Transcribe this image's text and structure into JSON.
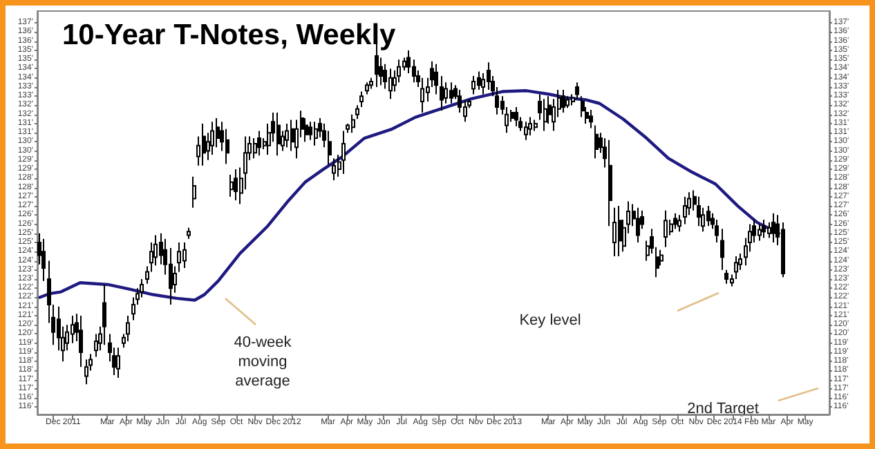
{
  "chart_data": {
    "type": "candlestick",
    "title": "10-Year T-Notes, Weekly",
    "annotations": [
      "40-week moving average",
      "Key level",
      "2nd Target"
    ],
    "color": "#000000",
    "x": [
      "2010-11-09",
      "2010-11-16",
      "2010-11-24",
      "2010-12-02",
      "2010-12-10",
      "2010-12-17",
      "2010-12-25",
      "2011-01-02",
      "2011-01-10",
      "2011-01-17",
      "2011-01-25",
      "2011-02-02",
      "2011-02-10",
      "2011-02-17",
      "2011-02-25",
      "2011-03-05",
      "2011-03-13",
      "2011-03-20",
      "2011-03-28",
      "2011-04-05",
      "2011-04-13",
      "2011-04-20",
      "2011-04-28",
      "2011-05-06",
      "2011-05-14",
      "2011-05-21",
      "2011-05-29",
      "2011-06-06",
      "2011-06-14",
      "2011-06-21",
      "2011-06-29",
      "2011-07-07",
      "2011-07-15",
      "2011-07-22",
      "2011-07-30",
      "2011-08-07",
      "2011-08-15",
      "2011-08-22",
      "2011-08-30",
      "2011-09-07",
      "2011-09-15",
      "2011-09-22",
      "2011-09-30",
      "2011-10-08",
      "2011-10-16",
      "2011-10-23",
      "2011-10-31",
      "2011-11-08",
      "2011-11-16",
      "2011-11-23",
      "2011-12-01",
      "2011-12-09",
      "2011-12-17",
      "2011-12-24",
      "2012-01-01",
      "2012-01-09",
      "2012-01-17",
      "2012-01-24",
      "2012-02-01",
      "2012-02-09",
      "2012-02-17",
      "2012-02-24",
      "2012-03-03",
      "2012-03-11",
      "2012-03-19",
      "2012-03-26",
      "2012-04-03",
      "2012-04-11",
      "2012-04-19",
      "2012-04-26",
      "2012-05-04",
      "2012-05-12",
      "2012-05-20",
      "2012-05-27",
      "2012-06-04",
      "2012-06-12",
      "2012-06-20",
      "2012-06-27",
      "2012-07-05",
      "2012-07-13",
      "2012-07-21",
      "2012-07-28",
      "2012-08-05",
      "2012-08-13",
      "2012-08-21",
      "2012-08-28",
      "2012-09-05",
      "2012-09-13",
      "2012-09-21",
      "2012-09-28",
      "2012-10-06",
      "2012-10-14",
      "2012-10-22",
      "2012-10-29",
      "2012-11-06",
      "2012-11-14",
      "2012-11-22",
      "2012-11-29",
      "2012-12-07",
      "2012-12-15",
      "2012-12-23",
      "2012-12-30",
      "2013-01-07",
      "2013-01-15",
      "2013-01-23",
      "2013-01-30",
      "2013-02-07",
      "2013-02-15",
      "2013-02-23",
      "2013-03-02",
      "2013-03-10",
      "2013-03-18",
      "2013-03-26",
      "2013-04-02",
      "2013-04-10",
      "2013-04-18",
      "2013-04-26",
      "2013-05-03",
      "2013-05-11",
      "2013-05-19",
      "2013-05-27",
      "2013-06-03",
      "2013-06-11",
      "2013-06-19",
      "2013-06-27",
      "2013-07-04",
      "2013-07-12",
      "2013-07-20",
      "2013-07-28",
      "2013-08-04",
      "2013-08-12",
      "2013-08-20",
      "2013-08-28",
      "2013-09-04",
      "2013-09-12",
      "2013-09-20",
      "2013-09-28",
      "2013-10-05",
      "2013-10-13",
      "2013-10-21",
      "2013-10-29",
      "2013-11-05",
      "2013-11-13",
      "2013-11-21",
      "2013-11-29",
      "2013-12-06",
      "2013-12-14",
      "2013-12-22",
      "2013-12-30",
      "2014-01-06",
      "2014-01-14",
      "2014-01-22",
      "2014-01-30",
      "2014-02-06",
      "2014-02-14",
      "2014-02-22",
      "2014-03-02",
      "2014-03-09",
      "2014-03-17",
      "2014-03-25"
    ],
    "ohlc": [
      [
        125.0,
        125.5,
        123.8,
        124.3
      ],
      [
        124.5,
        125.2,
        122.9,
        123.6
      ],
      [
        123.0,
        124.0,
        120.6,
        121.6
      ],
      [
        120.9,
        121.6,
        119.4,
        120.1
      ],
      [
        120.8,
        121.5,
        119.1,
        119.8
      ],
      [
        119.1,
        120.4,
        118.5,
        119.8
      ],
      [
        119.5,
        120.5,
        119.1,
        120.1
      ],
      [
        120.0,
        121.0,
        119.5,
        120.5
      ],
      [
        120.6,
        121.1,
        119.6,
        120.1
      ],
      [
        120.2,
        121.0,
        118.2,
        119.0
      ],
      [
        117.7,
        118.6,
        117.25,
        118.2
      ],
      [
        118.3,
        118.9,
        118.0,
        118.6
      ],
      [
        119.1,
        120.0,
        118.75,
        119.6
      ],
      [
        119.5,
        120.4,
        119.1,
        120.0
      ],
      [
        121.7,
        122.7,
        119.4,
        120.4
      ],
      [
        119.5,
        120.0,
        118.5,
        119.0
      ],
      [
        118.8,
        119.25,
        117.75,
        118.2
      ],
      [
        118.1,
        119.25,
        117.6,
        118.8
      ],
      [
        119.5,
        120.0,
        119.25,
        119.8
      ],
      [
        120.0,
        121.0,
        119.6,
        120.6
      ],
      [
        121.1,
        122.0,
        120.75,
        121.6
      ],
      [
        121.9,
        122.5,
        121.6,
        122.2
      ],
      [
        122.3,
        123.0,
        122.0,
        122.7
      ],
      [
        123.0,
        123.7,
        122.75,
        123.4
      ],
      [
        123.9,
        125.0,
        123.4,
        124.5
      ],
      [
        124.2,
        125.4,
        123.75,
        124.9
      ],
      [
        125.0,
        125.5,
        123.8,
        124.3
      ],
      [
        124.6,
        125.2,
        123.25,
        123.8
      ],
      [
        123.8,
        124.7,
        121.6,
        122.5
      ],
      [
        122.7,
        123.7,
        122.25,
        123.3
      ],
      [
        123.9,
        125.0,
        123.4,
        124.5
      ],
      [
        124.0,
        125.0,
        123.6,
        124.6
      ],
      [
        125.4,
        125.8,
        125.2,
        125.6
      ],
      [
        127.4,
        128.6,
        126.9,
        128.1
      ],
      [
        129.7,
        130.8,
        129.2,
        130.3
      ],
      [
        130.8,
        131.5,
        129.2,
        129.9
      ],
      [
        130.0,
        131.0,
        129.5,
        130.5
      ],
      [
        130.3,
        131.6,
        129.8,
        131.1
      ],
      [
        131.3,
        131.8,
        130.2,
        130.7
      ],
      [
        131.1,
        131.6,
        130.0,
        130.5
      ],
      [
        130.6,
        131.2,
        129.3,
        129.9
      ],
      [
        127.9,
        128.7,
        127.5,
        128.3
      ],
      [
        128.5,
        129.0,
        127.3,
        127.8
      ],
      [
        127.7,
        129.1,
        127.1,
        128.5
      ],
      [
        128.8,
        130.8,
        127.9,
        129.9
      ],
      [
        129.9,
        130.8,
        129.5,
        130.4
      ],
      [
        129.9,
        130.7,
        129.6,
        130.4
      ],
      [
        130.7,
        131.1,
        129.75,
        130.2
      ],
      [
        130.3,
        130.7,
        130.1,
        130.5
      ],
      [
        130.3,
        131.5,
        129.8,
        131.0
      ],
      [
        131.6,
        132.1,
        130.5,
        131.0
      ],
      [
        131.4,
        132.1,
        129.75,
        130.4
      ],
      [
        130.3,
        131.1,
        130.0,
        130.8
      ],
      [
        130.6,
        131.5,
        130.2,
        131.1
      ],
      [
        131.2,
        131.7,
        130.0,
        130.5
      ],
      [
        130.2,
        131.7,
        129.6,
        131.2
      ],
      [
        131.8,
        132.2,
        130.75,
        131.2
      ],
      [
        131.4,
        131.8,
        130.5,
        130.9
      ],
      [
        131.3,
        131.6,
        130.6,
        130.9
      ],
      [
        130.7,
        131.6,
        130.3,
        131.2
      ],
      [
        131.5,
        131.8,
        130.75,
        131.1
      ],
      [
        131.1,
        131.5,
        130.2,
        130.6
      ],
      [
        130.5,
        131.1,
        129.25,
        129.8
      ],
      [
        128.8,
        129.6,
        128.4,
        129.2
      ],
      [
        129.0,
        129.8,
        128.6,
        129.4
      ],
      [
        129.5,
        131.1,
        128.75,
        130.4
      ],
      [
        131.2,
        131.5,
        131.0,
        131.4
      ],
      [
        131.3,
        132.0,
        131.0,
        131.7
      ],
      [
        132.0,
        132.5,
        131.75,
        132.3
      ],
      [
        132.7,
        133.25,
        132.4,
        133.0
      ],
      [
        133.3,
        133.75,
        133.1,
        133.6
      ],
      [
        133.6,
        134.0,
        133.4,
        133.8
      ],
      [
        135.2,
        135.9,
        133.5,
        134.2
      ],
      [
        134.6,
        135.1,
        133.6,
        134.1
      ],
      [
        134.4,
        134.75,
        133.4,
        133.8
      ],
      [
        133.3,
        134.5,
        132.85,
        134.0
      ],
      [
        133.6,
        134.4,
        133.25,
        134.0
      ],
      [
        134.1,
        135.0,
        133.75,
        134.6
      ],
      [
        134.6,
        135.1,
        134.4,
        134.9
      ],
      [
        135.1,
        135.5,
        134.25,
        134.6
      ],
      [
        134.6,
        135.0,
        133.75,
        134.1
      ],
      [
        134.1,
        134.4,
        133.5,
        133.8
      ],
      [
        132.7,
        134.0,
        132.1,
        133.4
      ],
      [
        133.2,
        134.0,
        132.7,
        133.5
      ],
      [
        134.5,
        134.9,
        133.5,
        133.9
      ],
      [
        134.3,
        134.75,
        133.1,
        133.6
      ],
      [
        133.5,
        134.1,
        132.2,
        132.8
      ],
      [
        132.9,
        133.75,
        132.6,
        133.4
      ],
      [
        133.3,
        133.75,
        132.6,
        132.9
      ],
      [
        133.4,
        133.6,
        132.85,
        133.0
      ],
      [
        133.0,
        133.35,
        132.1,
        132.4
      ],
      [
        131.9,
        132.75,
        131.6,
        132.4
      ],
      [
        132.5,
        132.85,
        132.35,
        132.7
      ],
      [
        133.4,
        134.1,
        133.1,
        133.8
      ],
      [
        134.0,
        134.35,
        133.35,
        133.6
      ],
      [
        133.5,
        134.25,
        133.1,
        133.9
      ],
      [
        134.4,
        134.85,
        133.35,
        133.8
      ],
      [
        133.8,
        134.1,
        133.0,
        133.3
      ],
      [
        133.0,
        133.5,
        132.0,
        132.4
      ],
      [
        132.7,
        133.0,
        132.0,
        132.3
      ],
      [
        131.4,
        132.4,
        131.0,
        132.0
      ],
      [
        132.1,
        132.25,
        131.6,
        131.8
      ],
      [
        132.1,
        132.4,
        131.35,
        131.7
      ],
      [
        131.6,
        131.85,
        131.1,
        131.3
      ],
      [
        130.9,
        131.6,
        130.6,
        131.3
      ],
      [
        131.2,
        131.85,
        130.85,
        131.5
      ],
      [
        131.3,
        131.7,
        131.1,
        131.5
      ],
      [
        132.7,
        133.1,
        131.7,
        132.1
      ],
      [
        131.6,
        132.85,
        131.1,
        132.3
      ],
      [
        132.5,
        133.0,
        131.5,
        132.0
      ],
      [
        131.6,
        132.85,
        131.1,
        132.4
      ],
      [
        132.3,
        133.35,
        131.85,
        132.9
      ],
      [
        133.0,
        133.35,
        132.1,
        132.4
      ],
      [
        132.5,
        133.0,
        132.35,
        132.8
      ],
      [
        132.7,
        133.1,
        132.5,
        132.9
      ],
      [
        133.5,
        133.75,
        132.85,
        133.1
      ],
      [
        132.7,
        133.0,
        131.85,
        132.2
      ],
      [
        132.1,
        132.4,
        131.5,
        131.8
      ],
      [
        131.9,
        132.25,
        131.25,
        131.6
      ],
      [
        130.9,
        131.4,
        129.6,
        130.1
      ],
      [
        130.7,
        131.0,
        129.9,
        130.2
      ],
      [
        130.2,
        130.7,
        129.1,
        129.6
      ],
      [
        129.2,
        130.6,
        125.9,
        127.3
      ],
      [
        125.0,
        126.9,
        124.25,
        126.1
      ],
      [
        126.2,
        127.0,
        124.25,
        125.1
      ],
      [
        124.8,
        126.25,
        124.5,
        125.8
      ],
      [
        126.0,
        127.25,
        125.5,
        126.7
      ],
      [
        126.7,
        127.1,
        125.9,
        126.3
      ],
      [
        126.3,
        126.9,
        125.0,
        125.4
      ],
      [
        126.4,
        126.75,
        125.75,
        126.0
      ],
      [
        124.3,
        125.1,
        124.0,
        124.8
      ],
      [
        125.3,
        125.75,
        124.4,
        124.7
      ],
      [
        124.2,
        124.75,
        123.1,
        123.6
      ],
      [
        124.0,
        124.6,
        123.75,
        124.3
      ],
      [
        125.3,
        126.75,
        124.75,
        126.2
      ],
      [
        125.6,
        126.25,
        125.4,
        126.0
      ],
      [
        126.3,
        126.6,
        125.75,
        126.0
      ],
      [
        125.9,
        126.5,
        125.6,
        126.2
      ],
      [
        126.4,
        127.5,
        126.0,
        127.0
      ],
      [
        126.9,
        127.75,
        126.5,
        127.4
      ],
      [
        127.5,
        127.85,
        126.75,
        127.1
      ],
      [
        127.0,
        127.5,
        125.9,
        126.4
      ],
      [
        125.9,
        126.9,
        125.6,
        126.5
      ],
      [
        126.7,
        127.0,
        125.9,
        126.2
      ],
      [
        126.3,
        126.6,
        125.75,
        126.0
      ],
      [
        125.9,
        126.25,
        125.0,
        125.4
      ],
      [
        125.1,
        125.75,
        123.5,
        124.2
      ],
      [
        123.3,
        123.5,
        122.75,
        123.0
      ],
      [
        122.8,
        123.25,
        122.6,
        123.0
      ],
      [
        123.4,
        124.25,
        123.0,
        123.9
      ],
      [
        123.8,
        124.4,
        123.5,
        124.1
      ],
      [
        124.2,
        125.25,
        123.75,
        124.8
      ],
      [
        125.0,
        126.0,
        124.5,
        125.6
      ],
      [
        125.9,
        126.25,
        125.0,
        125.4
      ],
      [
        125.4,
        126.0,
        125.1,
        125.7
      ],
      [
        125.9,
        126.25,
        125.25,
        125.6
      ],
      [
        125.5,
        126.1,
        125.25,
        125.8
      ],
      [
        126.1,
        126.6,
        125.0,
        125.5
      ],
      [
        126.0,
        126.5,
        124.85,
        125.3
      ],
      [
        125.7,
        126.1,
        123.1,
        123.3
      ]
    ],
    "series": [
      {
        "type": "line",
        "color": "#1f1a80",
        "x": [
          "2010-11-09",
          "2010-11-25",
          "2010-12-14",
          "2011-01-15",
          "2011-03-02",
          "2011-04-07",
          "2011-05-16",
          "2011-06-24",
          "2011-07-24",
          "2011-08-09",
          "2011-09-01",
          "2011-10-07",
          "2011-11-22",
          "2011-12-24",
          "2012-01-23",
          "2012-02-22",
          "2012-03-25",
          "2012-04-30",
          "2012-06-15",
          "2012-07-24",
          "2012-09-08",
          "2012-10-24",
          "2012-12-15",
          "2013-01-23",
          "2013-03-03",
          "2013-04-02",
          "2013-05-02",
          "2013-05-25",
          "2013-07-03",
          "2013-08-11",
          "2013-09-16",
          "2013-10-25",
          "2013-12-03",
          "2014-01-09",
          "2014-02-10",
          "2014-03-18"
        ],
        "values": [
          122.0,
          122.2,
          122.3,
          122.8,
          122.7,
          122.45,
          122.15,
          121.95,
          121.85,
          122.15,
          122.9,
          124.4,
          125.9,
          127.2,
          128.3,
          129.0,
          129.7,
          130.7,
          131.2,
          131.85,
          132.35,
          132.85,
          133.25,
          133.3,
          133.1,
          132.9,
          132.8,
          132.6,
          131.75,
          130.7,
          129.6,
          128.85,
          128.2,
          127.0,
          126.1,
          125.5
        ]
      }
    ],
    "xlim": [
      "2010-11-05",
      "2014-06-10"
    ],
    "xticks": [
      {
        "value": "2010-12-01",
        "label": "Dec"
      },
      {
        "value": "2011-01-01",
        "label": "2011"
      },
      {
        "value": "2011-03-01",
        "label": "Mar"
      },
      {
        "value": "2011-04-01",
        "label": "Apr"
      },
      {
        "value": "2011-05-01",
        "label": "May"
      },
      {
        "value": "2011-06-01",
        "label": "Jun"
      },
      {
        "value": "2011-07-01",
        "label": "Jul"
      },
      {
        "value": "2011-08-01",
        "label": "Aug"
      },
      {
        "value": "2011-09-01",
        "label": "Sep"
      },
      {
        "value": "2011-10-01",
        "label": "Oct"
      },
      {
        "value": "2011-11-01",
        "label": "Nov"
      },
      {
        "value": "2011-12-01",
        "label": "Dec"
      },
      {
        "value": "2012-01-01",
        "label": "2012"
      },
      {
        "value": "2012-03-01",
        "label": "Mar"
      },
      {
        "value": "2012-04-01",
        "label": "Apr"
      },
      {
        "value": "2012-05-01",
        "label": "May"
      },
      {
        "value": "2012-06-01",
        "label": "Jun"
      },
      {
        "value": "2012-07-01",
        "label": "Jul"
      },
      {
        "value": "2012-08-01",
        "label": "Aug"
      },
      {
        "value": "2012-09-01",
        "label": "Sep"
      },
      {
        "value": "2012-10-01",
        "label": "Oct"
      },
      {
        "value": "2012-11-01",
        "label": "Nov"
      },
      {
        "value": "2012-12-01",
        "label": "Dec"
      },
      {
        "value": "2013-01-01",
        "label": "2013"
      },
      {
        "value": "2013-03-01",
        "label": "Mar"
      },
      {
        "value": "2013-04-01",
        "label": "Apr"
      },
      {
        "value": "2013-05-01",
        "label": "May"
      },
      {
        "value": "2013-06-01",
        "label": "Jun"
      },
      {
        "value": "2013-07-01",
        "label": "Jul"
      },
      {
        "value": "2013-08-01",
        "label": "Aug"
      },
      {
        "value": "2013-09-01",
        "label": "Sep"
      },
      {
        "value": "2013-10-01",
        "label": "Oct"
      },
      {
        "value": "2013-11-01",
        "label": "Nov"
      },
      {
        "value": "2013-12-01",
        "label": "Dec"
      },
      {
        "value": "2014-01-01",
        "label": "2014"
      },
      {
        "value": "2014-02-01",
        "label": "Feb"
      },
      {
        "value": "2014-03-01",
        "label": "Mar"
      },
      {
        "value": "2014-04-01",
        "label": "Apr"
      },
      {
        "value": "2014-05-01",
        "label": "May"
      }
    ],
    "ylim": [
      115.6,
      137.65
    ],
    "yticks": [
      {
        "value": 116,
        "label": "116'"
      },
      {
        "value": 116.5,
        "label": "116'"
      },
      {
        "value": 117,
        "label": "117'"
      },
      {
        "value": 117.5,
        "label": "117'"
      },
      {
        "value": 118,
        "label": "118'"
      },
      {
        "value": 118.5,
        "label": "118'"
      },
      {
        "value": 119,
        "label": "119'"
      },
      {
        "value": 119.5,
        "label": "119'"
      },
      {
        "value": 120,
        "label": "120'"
      },
      {
        "value": 120.5,
        "label": "120'"
      },
      {
        "value": 121,
        "label": "121'"
      },
      {
        "value": 121.5,
        "label": "121'"
      },
      {
        "value": 122,
        "label": "122'"
      },
      {
        "value": 122.5,
        "label": "122'"
      },
      {
        "value": 123,
        "label": "123'"
      },
      {
        "value": 123.5,
        "label": "123'"
      },
      {
        "value": 124,
        "label": "124'"
      },
      {
        "value": 124.5,
        "label": "124'"
      },
      {
        "value": 125,
        "label": "125'"
      },
      {
        "value": 125.5,
        "label": "125'"
      },
      {
        "value": 126,
        "label": "126'"
      },
      {
        "value": 126.5,
        "label": "126'"
      },
      {
        "value": 127,
        "label": "127'"
      },
      {
        "value": 127.5,
        "label": "127'"
      },
      {
        "value": 128,
        "label": "128'"
      },
      {
        "value": 128.5,
        "label": "128'"
      },
      {
        "value": 129,
        "label": "129'"
      },
      {
        "value": 129.5,
        "label": "129'"
      },
      {
        "value": 130,
        "label": "130'"
      },
      {
        "value": 130.5,
        "label": "130'"
      },
      {
        "value": 131,
        "label": "131'"
      },
      {
        "value": 131.5,
        "label": "131'"
      },
      {
        "value": 132,
        "label": "132'"
      },
      {
        "value": 132.5,
        "label": "132'"
      },
      {
        "value": 133,
        "label": "133'"
      },
      {
        "value": 133.5,
        "label": "133'"
      },
      {
        "value": 134,
        "label": "134'"
      },
      {
        "value": 134.5,
        "label": "134'"
      },
      {
        "value": 135,
        "label": "135'"
      },
      {
        "value": 135.5,
        "label": "135'"
      },
      {
        "value": 136,
        "label": "136'"
      },
      {
        "value": 136.5,
        "label": "136'"
      },
      {
        "value": 137,
        "label": "137'"
      }
    ],
    "y2lim": [
      115.6,
      137.65
    ],
    "y2ticks": [
      {
        "value": 116,
        "label": "116'"
      },
      {
        "value": 116.5,
        "label": "116'"
      },
      {
        "value": 117,
        "label": "117'"
      },
      {
        "value": 117.5,
        "label": "117'"
      },
      {
        "value": 118,
        "label": "118'"
      },
      {
        "value": 118.5,
        "label": "118'"
      },
      {
        "value": 119,
        "label": "119'"
      },
      {
        "value": 119.5,
        "label": "119'"
      },
      {
        "value": 120,
        "label": "120'"
      },
      {
        "value": 120.5,
        "label": "120'"
      },
      {
        "value": 121,
        "label": "121'"
      },
      {
        "value": 121.5,
        "label": "121'"
      },
      {
        "value": 122,
        "label": "122'"
      },
      {
        "value": 122.5,
        "label": "122'"
      },
      {
        "value": 123,
        "label": "123'"
      },
      {
        "value": 123.5,
        "label": "123'"
      },
      {
        "value": 124,
        "label": "124'"
      },
      {
        "value": 124.5,
        "label": "124'"
      },
      {
        "value": 125,
        "label": "125'"
      },
      {
        "value": 125.5,
        "label": "125'"
      },
      {
        "value": 126,
        "label": "126'"
      },
      {
        "value": 126.5,
        "label": "126'"
      },
      {
        "value": 127,
        "label": "127'"
      },
      {
        "value": 127.5,
        "label": "127'"
      },
      {
        "value": 128,
        "label": "128'"
      },
      {
        "value": 128.5,
        "label": "128'"
      },
      {
        "value": 129,
        "label": "129'"
      },
      {
        "value": 129.5,
        "label": "129'"
      },
      {
        "value": 130,
        "label": "130'"
      },
      {
        "value": 130.5,
        "label": "130'"
      },
      {
        "value": 131,
        "label": "131'"
      },
      {
        "value": 131.5,
        "label": "131'"
      },
      {
        "value": 132,
        "label": "132'"
      },
      {
        "value": 132.5,
        "label": "132'"
      },
      {
        "value": 133,
        "label": "133'"
      },
      {
        "value": 133.5,
        "label": "133'"
      },
      {
        "value": 134,
        "label": "134'"
      },
      {
        "value": 134.5,
        "label": "134'"
      },
      {
        "value": 135,
        "label": "135'"
      },
      {
        "value": 135.5,
        "label": "135'"
      },
      {
        "value": 136,
        "label": "136'"
      },
      {
        "value": 136.5,
        "label": "136'"
      },
      {
        "value": 137,
        "label": "137'"
      }
    ],
    "grid": false
  }
}
